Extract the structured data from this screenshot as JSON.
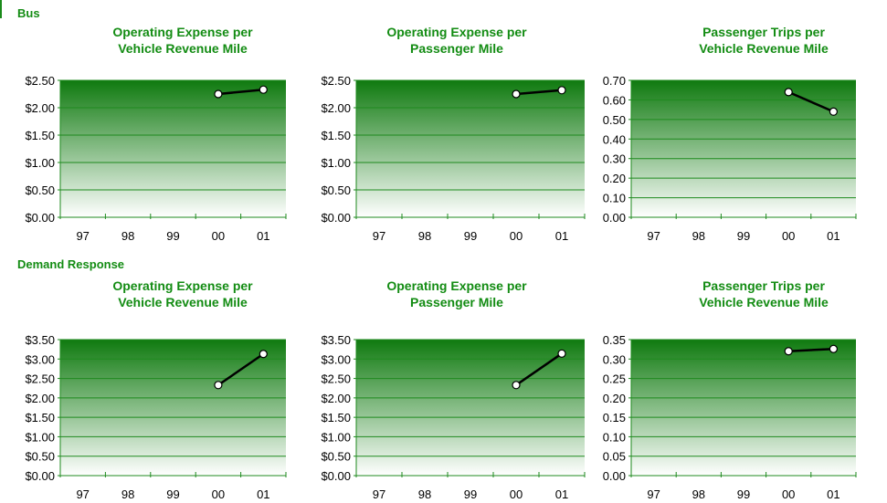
{
  "sections": [
    {
      "label": "Bus"
    },
    {
      "label": "Demand Response"
    }
  ],
  "colors": {
    "title_green": "#138c13",
    "plot_top": "#0f7a0f",
    "plot_bottom": "#ffffff",
    "grid": "#1e8a1e",
    "line": "#000000",
    "marker_fill": "#ffffff"
  },
  "chart_data": [
    {
      "type": "line",
      "section": "Bus",
      "title_line1": "Operating Expense per",
      "title_line2": "Vehicle Revenue Mile",
      "categories": [
        "97",
        "98",
        "99",
        "00",
        "01"
      ],
      "values": [
        null,
        null,
        null,
        2.25,
        2.33
      ],
      "ylim": [
        0,
        2.5
      ],
      "yticks": [
        "$0.00",
        "$0.50",
        "$1.00",
        "$1.50",
        "$2.00",
        "$2.50"
      ],
      "grid": true
    },
    {
      "type": "line",
      "section": "Bus",
      "title_line1": "Operating Expense per",
      "title_line2": "Passenger Mile",
      "categories": [
        "97",
        "98",
        "99",
        "00",
        "01"
      ],
      "values": [
        null,
        null,
        null,
        2.25,
        2.32
      ],
      "ylim": [
        0,
        2.5
      ],
      "yticks": [
        "$0.00",
        "$0.50",
        "$1.00",
        "$1.50",
        "$2.00",
        "$2.50"
      ],
      "grid": true
    },
    {
      "type": "line",
      "section": "Bus",
      "title_line1": "Passenger Trips per",
      "title_line2": "Vehicle Revenue Mile",
      "categories": [
        "97",
        "98",
        "99",
        "00",
        "01"
      ],
      "values": [
        null,
        null,
        null,
        0.64,
        0.54
      ],
      "ylim": [
        0,
        0.7
      ],
      "yticks": [
        "0.00",
        "0.10",
        "0.20",
        "0.30",
        "0.40",
        "0.50",
        "0.60",
        "0.70"
      ],
      "grid": true
    },
    {
      "type": "line",
      "section": "Demand Response",
      "title_line1": "Operating Expense per",
      "title_line2": "Vehicle Revenue Mile",
      "categories": [
        "97",
        "98",
        "99",
        "00",
        "01"
      ],
      "values": [
        null,
        null,
        null,
        2.33,
        3.13
      ],
      "ylim": [
        0,
        3.5
      ],
      "yticks": [
        "$0.00",
        "$0.50",
        "$1.00",
        "$1.50",
        "$2.00",
        "$2.50",
        "$3.00",
        "$3.50"
      ],
      "grid": true
    },
    {
      "type": "line",
      "section": "Demand Response",
      "title_line1": "Operating Expense per",
      "title_line2": "Passenger Mile",
      "categories": [
        "97",
        "98",
        "99",
        "00",
        "01"
      ],
      "values": [
        null,
        null,
        null,
        2.33,
        3.14
      ],
      "ylim": [
        0,
        3.5
      ],
      "yticks": [
        "$0.00",
        "$0.50",
        "$1.00",
        "$1.50",
        "$2.00",
        "$2.50",
        "$3.00",
        "$3.50"
      ],
      "grid": true
    },
    {
      "type": "line",
      "section": "Demand Response",
      "title_line1": "Passenger Trips per",
      "title_line2": "Vehicle Revenue Mile",
      "categories": [
        "97",
        "98",
        "99",
        "00",
        "01"
      ],
      "values": [
        null,
        null,
        null,
        0.32,
        0.326
      ],
      "ylim": [
        0,
        0.35
      ],
      "yticks": [
        "0.00",
        "0.05",
        "0.10",
        "0.15",
        "0.20",
        "0.25",
        "0.30",
        "0.35"
      ],
      "grid": true
    }
  ]
}
